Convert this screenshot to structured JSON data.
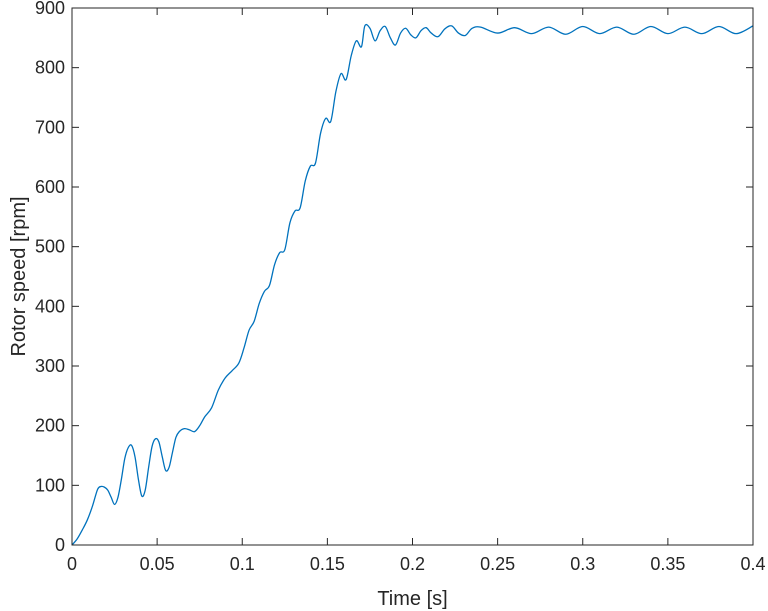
{
  "chart_data": {
    "type": "line",
    "title": "",
    "xlabel": "Time [s]",
    "ylabel": "Rotor speed [rpm]",
    "xlim": [
      0,
      0.4
    ],
    "ylim": [
      0,
      900
    ],
    "x_ticks": [
      0,
      0.05,
      0.1,
      0.15,
      0.2,
      0.25,
      0.3,
      0.35,
      0.4
    ],
    "x_tick_labels": [
      "0",
      "0.05",
      "0.1",
      "0.15",
      "0.2",
      "0.25",
      "0.3",
      "0.35",
      "0.4"
    ],
    "y_ticks": [
      0,
      100,
      200,
      300,
      400,
      500,
      600,
      700,
      800,
      900
    ],
    "y_tick_labels": [
      "0",
      "100",
      "200",
      "300",
      "400",
      "500",
      "600",
      "700",
      "800",
      "900"
    ],
    "grid": false,
    "box": true,
    "colors": {
      "line": "#0072BD",
      "axes": "#262626",
      "background": "#ffffff"
    },
    "series": [
      {
        "x": [
          0,
          0.003,
          0.006,
          0.009,
          0.012,
          0.015,
          0.017,
          0.019,
          0.021,
          0.023,
          0.025,
          0.027,
          0.029,
          0.031,
          0.033,
          0.035,
          0.037,
          0.039,
          0.041,
          0.043,
          0.045,
          0.047,
          0.049,
          0.051,
          0.053,
          0.055,
          0.057,
          0.059,
          0.061,
          0.063,
          0.066,
          0.069,
          0.072,
          0.075,
          0.078,
          0.082,
          0.086,
          0.09,
          0.094,
          0.098,
          0.101,
          0.104,
          0.107,
          0.11,
          0.113,
          0.116,
          0.119,
          0.122,
          0.125,
          0.128,
          0.131,
          0.134,
          0.137,
          0.14,
          0.143,
          0.146,
          0.149,
          0.152,
          0.155,
          0.158,
          0.161,
          0.164,
          0.167,
          0.17,
          0.172,
          0.175,
          0.178,
          0.181,
          0.184,
          0.187,
          0.19,
          0.193,
          0.196,
          0.199,
          0.202,
          0.205,
          0.208,
          0.211,
          0.215,
          0.219,
          0.223,
          0.227,
          0.231,
          0.235,
          0.24,
          0.25,
          0.26,
          0.27,
          0.28,
          0.29,
          0.3,
          0.31,
          0.32,
          0.33,
          0.34,
          0.35,
          0.36,
          0.37,
          0.38,
          0.39,
          0.4
        ],
        "y": [
          0,
          10,
          25,
          42,
          65,
          93,
          98,
          97,
          92,
          80,
          68,
          80,
          110,
          145,
          163,
          167,
          148,
          110,
          82,
          92,
          130,
          165,
          178,
          173,
          148,
          125,
          130,
          155,
          180,
          190,
          195,
          193,
          190,
          200,
          215,
          230,
          260,
          280,
          292,
          305,
          330,
          360,
          375,
          405,
          425,
          435,
          470,
          490,
          495,
          540,
          560,
          565,
          610,
          635,
          640,
          690,
          715,
          710,
          760,
          790,
          780,
          820,
          845,
          835,
          870,
          866,
          845,
          862,
          869,
          850,
          838,
          858,
          866,
          855,
          850,
          862,
          867,
          858,
          852,
          865,
          870,
          858,
          854,
          866,
          868,
          858,
          867,
          857,
          868,
          856,
          869,
          857,
          868,
          856,
          869,
          857,
          868,
          857,
          869,
          857,
          870
        ]
      }
    ]
  }
}
